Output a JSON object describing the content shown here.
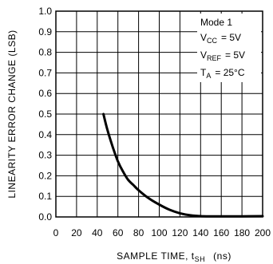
{
  "chart_data": {
    "type": "line",
    "xlabel": "SAMPLE TIME, t",
    "xlabel_sub": "SH",
    "xlabel_unit": "(ns)",
    "ylabel": "LINEARITY ERROR CHANGE (LSB)",
    "xlim": [
      0,
      200
    ],
    "ylim": [
      0,
      1.0
    ],
    "x_ticks": [
      "0",
      "20",
      "40",
      "60",
      "80",
      "100",
      "120",
      "140",
      "160",
      "180",
      "200"
    ],
    "y_ticks": [
      "0.0",
      "0.1",
      "0.2",
      "0.3",
      "0.4",
      "0.5",
      "0.6",
      "0.7",
      "0.8",
      "0.9",
      "1.0"
    ],
    "grid": true,
    "series": [
      {
        "x": [
          46,
          50,
          55,
          60,
          65,
          70,
          75,
          80,
          90,
          100,
          110,
          120,
          130,
          140,
          150,
          160,
          180,
          200
        ],
        "y": [
          0.5,
          0.42,
          0.34,
          0.27,
          0.22,
          0.18,
          0.155,
          0.13,
          0.09,
          0.06,
          0.035,
          0.018,
          0.008,
          0.004,
          0.003,
          0.003,
          0.003,
          0.004
        ]
      }
    ],
    "annotation": {
      "line1": "Mode 1",
      "line2_main": "V",
      "line2_sub": "CC",
      "line2_val": "= 5V",
      "line3_main": "V",
      "line3_sub": "REF",
      "line3_val": "= 5V",
      "line4_main": "T",
      "line4_sub": "A",
      "line4_val": "= 25°C"
    }
  }
}
